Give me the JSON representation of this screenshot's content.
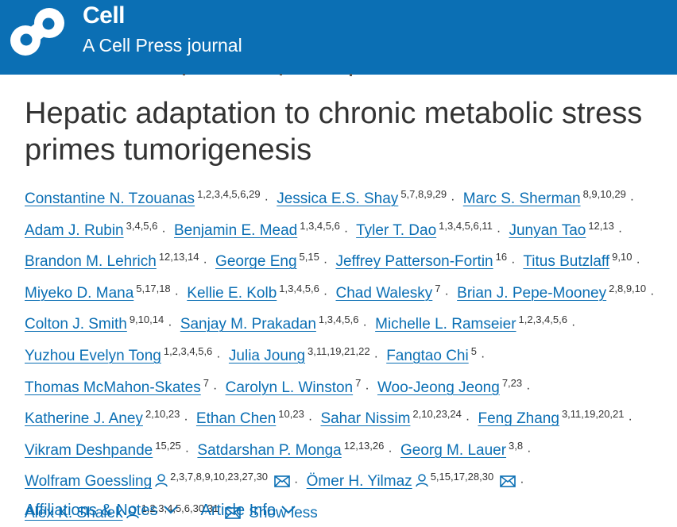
{
  "header": {
    "brand_name": "Cell",
    "brand_subtitle": "A Cell Press journal",
    "logo_icon": "cell-logo-icon",
    "background": "#0b6fb4"
  },
  "article": {
    "title": "Hepatic adaptation to chronic metabolic stress primes tumorigenesis"
  },
  "authors": [
    {
      "name": "Constantine N. Tzouanas",
      "aff": "1,2,3,4,5,6,29"
    },
    {
      "name": "Jessica E.S. Shay",
      "aff": "5,7,8,9,29"
    },
    {
      "name": "Marc S. Sherman",
      "aff": "8,9,10,29"
    },
    {
      "name": "Adam J. Rubin",
      "aff": "3,4,5,6"
    },
    {
      "name": "Benjamin E. Mead",
      "aff": "1,3,4,5,6"
    },
    {
      "name": "Tyler T. Dao",
      "aff": "1,3,4,5,6,11"
    },
    {
      "name": "Junyan Tao",
      "aff": "12,13"
    },
    {
      "name": "Brandon M. Lehrich",
      "aff": "12,13,14"
    },
    {
      "name": "George Eng",
      "aff": "5,15"
    },
    {
      "name": "Jeffrey Patterson-Fortin",
      "aff": "16"
    },
    {
      "name": "Titus Butzlaff",
      "aff": "9,10"
    },
    {
      "name": "Miyeko D. Mana",
      "aff": "5,17,18"
    },
    {
      "name": "Kellie E. Kolb",
      "aff": "1,3,4,5,6"
    },
    {
      "name": "Chad Walesky",
      "aff": "7"
    },
    {
      "name": "Brian J. Pepe-Mooney",
      "aff": "2,8,9,10"
    },
    {
      "name": "Colton J. Smith",
      "aff": "9,10,14"
    },
    {
      "name": "Sanjay M. Prakadan",
      "aff": "1,3,4,5,6"
    },
    {
      "name": "Michelle L. Ramseier",
      "aff": "1,2,3,4,5,6"
    },
    {
      "name": "Yuzhou Evelyn Tong",
      "aff": "1,2,3,4,5,6"
    },
    {
      "name": "Julia Joung",
      "aff": "3,11,19,21,22"
    },
    {
      "name": "Fangtao Chi",
      "aff": "5"
    },
    {
      "name": "Thomas McMahon-Skates",
      "aff": "7"
    },
    {
      "name": "Carolyn L. Winston",
      "aff": "7"
    },
    {
      "name": "Woo-Jeong Jeong",
      "aff": "7,23"
    },
    {
      "name": "Katherine J. Aney",
      "aff": "2,10,23"
    },
    {
      "name": "Ethan Chen",
      "aff": "10,23"
    },
    {
      "name": "Sahar Nissim",
      "aff": "2,10,23,24"
    },
    {
      "name": "Feng Zhang",
      "aff": "3,11,19,20,21"
    },
    {
      "name": "Vikram Deshpande",
      "aff": "15,25"
    },
    {
      "name": "Satdarshan P. Monga",
      "aff": "12,13,26"
    },
    {
      "name": "Georg M. Lauer",
      "aff": "3,8"
    },
    {
      "name": "Wolfram Goessling",
      "aff": "2,3,7,8,9,10,23,27,30",
      "icons": [
        "person-icon"
      ],
      "trailing_icon": "mail-icon"
    },
    {
      "name": "Ömer H. Yilmaz",
      "aff": "5,15,17,28,30",
      "icons": [
        "person-icon"
      ],
      "trailing_icon": "mail-icon"
    },
    {
      "name": "Alex K. Shalek",
      "aff": "1,2,3,4,5,6,30,31",
      "icons": [
        "person-icon"
      ],
      "trailing_icon": "mail-icon"
    }
  ],
  "separator": "·",
  "show_less_label": "Show less",
  "footer": {
    "affiliations_label": "Affiliations & Notes",
    "article_info_label": "Article Info",
    "chevron_icon": "chevron-down-icon"
  }
}
